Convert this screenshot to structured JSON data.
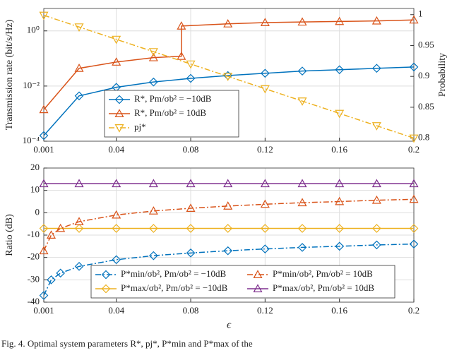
{
  "chart_data": [
    {
      "type": "line",
      "ylabel": "Transmission rate (bit/s/Hz)",
      "y2label": "Probability",
      "xlim": [
        0.001,
        0.2
      ],
      "xticks": [
        0.001,
        0.04,
        0.08,
        0.12,
        0.16,
        0.2
      ],
      "ylog": true,
      "ylim": [
        0.0001,
        6.5
      ],
      "yticks": [
        {
          "value": 0.0001,
          "label": "10⁻⁴"
        },
        {
          "value": 0.01,
          "label": "10⁻²"
        },
        {
          "value": 1,
          "label": "10⁰"
        }
      ],
      "y2lim": [
        0.795,
        1.01
      ],
      "y2ticks": [
        0.8,
        0.85,
        0.9,
        0.95,
        1
      ],
      "grid": true,
      "legend": "lower left",
      "series": [
        {
          "name": "R*, Pm/σb² = −10dB",
          "color": "#0072BD",
          "marker": "diamond",
          "dash": "solid",
          "x": [
            0.001,
            0.02,
            0.04,
            0.06,
            0.08,
            0.1,
            0.12,
            0.14,
            0.16,
            0.18,
            0.2
          ],
          "values": [
            0.00016,
            0.0044,
            0.009,
            0.014,
            0.019,
            0.024,
            0.029,
            0.035,
            0.039,
            0.044,
            0.049
          ]
        },
        {
          "name": "R*, Pm/σb² = 10dB",
          "color": "#D95319",
          "marker": "triangle-up",
          "dash": "solid",
          "x": [
            0.001,
            0.02,
            0.04,
            0.06,
            0.075,
            0.075,
            0.1,
            0.12,
            0.14,
            0.16,
            0.18,
            0.2
          ],
          "values": [
            0.0014,
            0.044,
            0.074,
            0.107,
            0.12,
            1.5,
            1.8,
            2.0,
            2.1,
            2.2,
            2.3,
            2.5
          ]
        },
        {
          "name": "pj*",
          "color": "#EDB120",
          "marker": "triangle-down",
          "dash": "dashdot",
          "axis": "y2",
          "x": [
            0.001,
            0.02,
            0.04,
            0.06,
            0.08,
            0.1,
            0.12,
            0.14,
            0.16,
            0.18,
            0.2
          ],
          "values": [
            0.999,
            0.98,
            0.96,
            0.94,
            0.92,
            0.9,
            0.88,
            0.86,
            0.84,
            0.82,
            0.8
          ]
        }
      ]
    },
    {
      "type": "line",
      "ylabel": "Ratio (dB)",
      "xlabel": "ϵ",
      "xlim": [
        0.001,
        0.2
      ],
      "xticks": [
        0.001,
        0.04,
        0.08,
        0.12,
        0.16,
        0.2
      ],
      "ylim": [
        -40,
        20
      ],
      "yticks": [
        -40,
        -30,
        -20,
        -10,
        0,
        10,
        20
      ],
      "grid": true,
      "legend": "lower center",
      "legend_columns": 2,
      "series": [
        {
          "name": "P*min/σb², Pm/σb² = −10dB",
          "color": "#0072BD",
          "marker": "diamond",
          "dash": "dashdot",
          "x": [
            0.001,
            0.005,
            0.01,
            0.02,
            0.04,
            0.06,
            0.08,
            0.1,
            0.12,
            0.14,
            0.16,
            0.18,
            0.2
          ],
          "values": [
            -37,
            -30,
            -27,
            -24,
            -21,
            -19.2,
            -18,
            -17,
            -16.2,
            -15.5,
            -15,
            -14.4,
            -14
          ]
        },
        {
          "name": "P*max/σb², Pm/σb² = −10dB",
          "color": "#EDB120",
          "marker": "diamond",
          "dash": "solid",
          "x": [
            0.001,
            0.02,
            0.04,
            0.06,
            0.08,
            0.1,
            0.12,
            0.14,
            0.16,
            0.18,
            0.2
          ],
          "values": [
            -7,
            -7,
            -7,
            -7,
            -7,
            -7,
            -7,
            -7,
            -7,
            -7,
            -7
          ]
        },
        {
          "name": "P*min/σb², Pm/σb² = 10dB",
          "color": "#D95319",
          "marker": "triangle-up",
          "dash": "dashdot",
          "x": [
            0.001,
            0.005,
            0.01,
            0.02,
            0.04,
            0.06,
            0.08,
            0.1,
            0.12,
            0.14,
            0.16,
            0.18,
            0.2
          ],
          "values": [
            -17,
            -10,
            -7,
            -4,
            -1,
            0.8,
            2,
            3,
            3.8,
            4.5,
            5,
            5.6,
            6
          ]
        },
        {
          "name": "P*max/σb², Pm/σb² = 10dB",
          "color": "#7E2F8E",
          "marker": "triangle-up",
          "dash": "solid",
          "x": [
            0.001,
            0.02,
            0.04,
            0.06,
            0.08,
            0.1,
            0.12,
            0.14,
            0.16,
            0.18,
            0.2
          ],
          "values": [
            13,
            13,
            13,
            13,
            13,
            13,
            13,
            13,
            13,
            13,
            13
          ]
        }
      ]
    }
  ],
  "caption": "Fig. 4.   Optimal system parameters R*, pj*, P*min and P*max of the"
}
